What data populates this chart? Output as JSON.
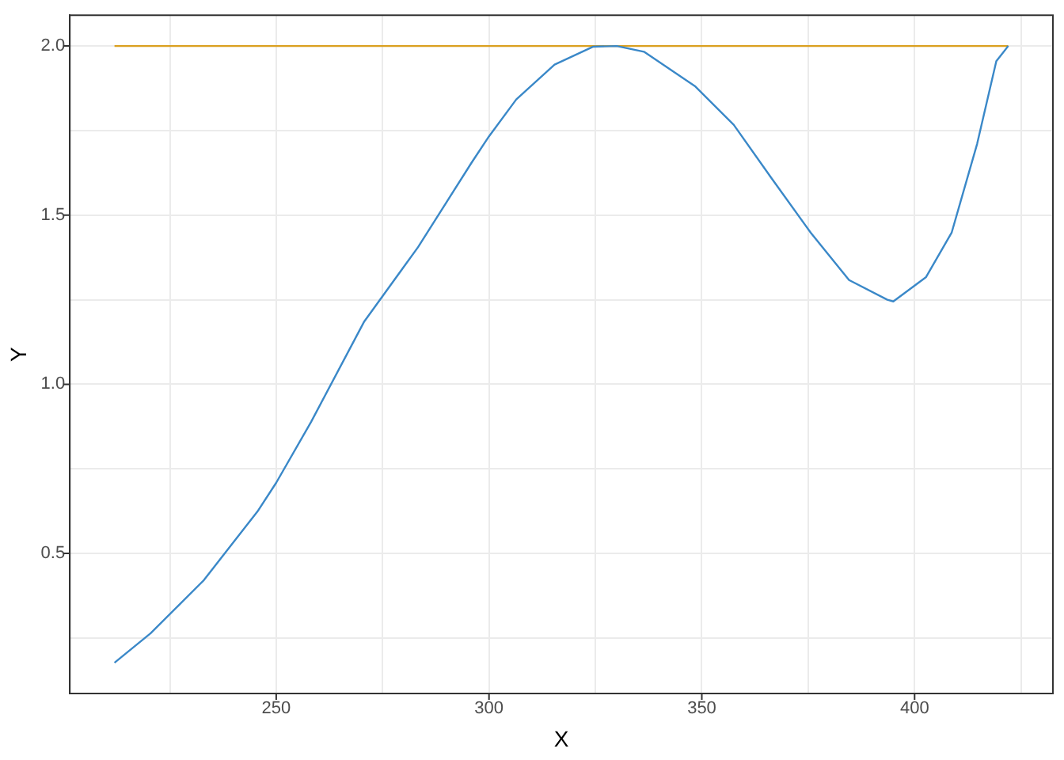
{
  "chart_data": {
    "type": "line",
    "xlabel": "X",
    "ylabel": "Y",
    "xlim": [
      201.5,
      432.5
    ],
    "ylim": [
      0.086,
      2.091
    ],
    "xticks": [
      {
        "value": 225,
        "label": null
      },
      250,
      {
        "value": 275,
        "label": null
      },
      300,
      {
        "value": 325,
        "label": null
      },
      350,
      {
        "value": 375,
        "label": null
      },
      400,
      {
        "value": 425,
        "label": null
      }
    ],
    "yticks": [
      {
        "value": 0.25,
        "label": null
      },
      0.5,
      {
        "value": 0.75,
        "label": null
      },
      {
        "value": 1,
        "label": "1.0"
      },
      {
        "value": 1.25,
        "label": null
      },
      1.5,
      {
        "value": 1.75,
        "label": null
      },
      {
        "value": 2,
        "label": "2.0"
      }
    ],
    "grid": true,
    "marker": "none",
    "line_style": "solid",
    "series": [
      {
        "color": "#3a88c8",
        "x": [
          212,
          220.5,
          233,
          245.6,
          250,
          258.2,
          270.7,
          283.3,
          295.9,
          300,
          306.4,
          315.4,
          324.5,
          330,
          336.4,
          348.5,
          357.5,
          366.5,
          375.6,
          384.6,
          393.6,
          395,
          402.7,
          408.7,
          414.7,
          419.2,
          422
        ],
        "values": [
          0.177,
          0.264,
          0.421,
          0.624,
          0.709,
          0.889,
          1.186,
          1.405,
          1.655,
          1.733,
          1.842,
          1.945,
          1.998,
          2.0,
          1.983,
          1.88,
          1.767,
          1.607,
          1.448,
          1.308,
          1.25,
          1.245,
          1.317,
          1.448,
          1.711,
          1.955,
          2.0
        ]
      },
      {
        "color": "#daa020",
        "x": [
          212,
          422
        ],
        "values": [
          2.0,
          2.0
        ]
      }
    ]
  }
}
